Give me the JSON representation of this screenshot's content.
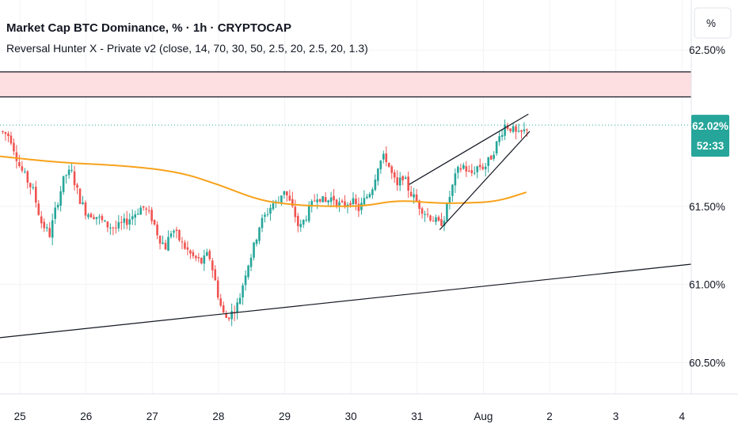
{
  "header": {
    "title": "Market Cap BTC Dominance, % · 1h · CRYPTOCAP",
    "indicator": "Reversal Hunter X - Private v2 (close, 14, 70, 30, 50, 2.5, 20, 2.5, 20, 1.3)"
  },
  "scale_mode_label": "%",
  "colors": {
    "up": "#26a69a",
    "down": "#ef5350",
    "ma": "#f7a21b",
    "zone_fill": "#fddfe1",
    "line": "#131722",
    "badge": "#26a69a",
    "grid": "#f2f3f6"
  },
  "last_price": {
    "value": "62.02%",
    "countdown": "52:33"
  },
  "chart_data": {
    "type": "candlestick",
    "symbol": "Market Cap BTC Dominance, %",
    "interval": "1h",
    "y_axis": {
      "ticks": [
        62.5,
        61.5,
        61.0,
        60.5
      ],
      "tick_labels": [
        "62.50%",
        "61.50%",
        "61.00%",
        "60.50%"
      ],
      "range": [
        60.3,
        62.82
      ]
    },
    "x_axis": {
      "labels": [
        "25",
        "26",
        "27",
        "28",
        "29",
        "30",
        "31",
        "Aug",
        "2",
        "3",
        "4"
      ],
      "label_days": [
        0,
        1,
        2,
        3,
        4,
        5,
        6,
        7,
        8,
        9,
        10
      ],
      "range_days": [
        -0.3,
        10.14
      ]
    },
    "last_value": 62.02,
    "resistance_zone": [
      62.2,
      62.36
    ],
    "trendlines": [
      {
        "from": [
          -0.3,
          60.66
        ],
        "to": [
          10.14,
          61.13
        ]
      },
      {
        "from": [
          5.88,
          61.64
        ],
        "to": [
          7.68,
          62.09
        ]
      },
      {
        "from": [
          6.34,
          61.35
        ],
        "to": [
          7.7,
          61.98
        ]
      }
    ],
    "ma_series": [
      [
        -0.3,
        61.82
      ],
      [
        0.6,
        61.78
      ],
      [
        1.6,
        61.76
      ],
      [
        2.4,
        61.72
      ],
      [
        3.0,
        61.64
      ],
      [
        3.6,
        61.54
      ],
      [
        4.1,
        61.51
      ],
      [
        4.6,
        61.5
      ],
      [
        5.2,
        61.5
      ],
      [
        5.7,
        61.54
      ],
      [
        6.3,
        61.52
      ],
      [
        6.7,
        61.52
      ],
      [
        7.2,
        61.53
      ],
      [
        7.65,
        61.59
      ]
    ],
    "close_path": [
      [
        -0.3,
        61.98
      ],
      [
        -0.15,
        61.95
      ],
      [
        0.0,
        61.75
      ],
      [
        0.2,
        61.6
      ],
      [
        0.32,
        61.4
      ],
      [
        0.45,
        61.32
      ],
      [
        0.55,
        61.5
      ],
      [
        0.68,
        61.7
      ],
      [
        0.78,
        61.72
      ],
      [
        0.9,
        61.55
      ],
      [
        1.0,
        61.46
      ],
      [
        1.15,
        61.44
      ],
      [
        1.3,
        61.38
      ],
      [
        1.45,
        61.36
      ],
      [
        1.6,
        61.4
      ],
      [
        1.75,
        61.46
      ],
      [
        1.85,
        61.5
      ],
      [
        2.0,
        61.42
      ],
      [
        2.1,
        61.3
      ],
      [
        2.2,
        61.24
      ],
      [
        2.3,
        61.36
      ],
      [
        2.45,
        61.26
      ],
      [
        2.6,
        61.18
      ],
      [
        2.75,
        61.14
      ],
      [
        2.85,
        61.2
      ],
      [
        2.92,
        61.08
      ],
      [
        3.02,
        60.88
      ],
      [
        3.1,
        60.78
      ],
      [
        3.2,
        60.82
      ],
      [
        3.3,
        60.88
      ],
      [
        3.42,
        61.1
      ],
      [
        3.52,
        61.22
      ],
      [
        3.62,
        61.38
      ],
      [
        3.72,
        61.45
      ],
      [
        3.82,
        61.52
      ],
      [
        3.9,
        61.52
      ],
      [
        3.98,
        61.62
      ],
      [
        4.05,
        61.55
      ],
      [
        4.15,
        61.45
      ],
      [
        4.22,
        61.35
      ],
      [
        4.3,
        61.42
      ],
      [
        4.4,
        61.5
      ],
      [
        4.5,
        61.58
      ],
      [
        4.6,
        61.52
      ],
      [
        4.72,
        61.56
      ],
      [
        4.85,
        61.5
      ],
      [
        5.0,
        61.54
      ],
      [
        5.12,
        61.48
      ],
      [
        5.22,
        61.55
      ],
      [
        5.32,
        61.62
      ],
      [
        5.42,
        61.78
      ],
      [
        5.52,
        61.82
      ],
      [
        5.62,
        61.7
      ],
      [
        5.7,
        61.62
      ],
      [
        5.78,
        61.7
      ],
      [
        5.88,
        61.6
      ],
      [
        5.96,
        61.55
      ],
      [
        6.04,
        61.5
      ],
      [
        6.14,
        61.45
      ],
      [
        6.24,
        61.42
      ],
      [
        6.34,
        61.38
      ],
      [
        6.42,
        61.44
      ],
      [
        6.5,
        61.58
      ],
      [
        6.6,
        61.72
      ],
      [
        6.7,
        61.76
      ],
      [
        6.8,
        61.7
      ],
      [
        6.92,
        61.76
      ],
      [
        7.02,
        61.75
      ],
      [
        7.12,
        61.82
      ],
      [
        7.22,
        61.92
      ],
      [
        7.32,
        62.02
      ],
      [
        7.42,
        62.0
      ],
      [
        7.52,
        61.95
      ],
      [
        7.62,
        61.98
      ],
      [
        7.68,
        62.02
      ]
    ]
  }
}
